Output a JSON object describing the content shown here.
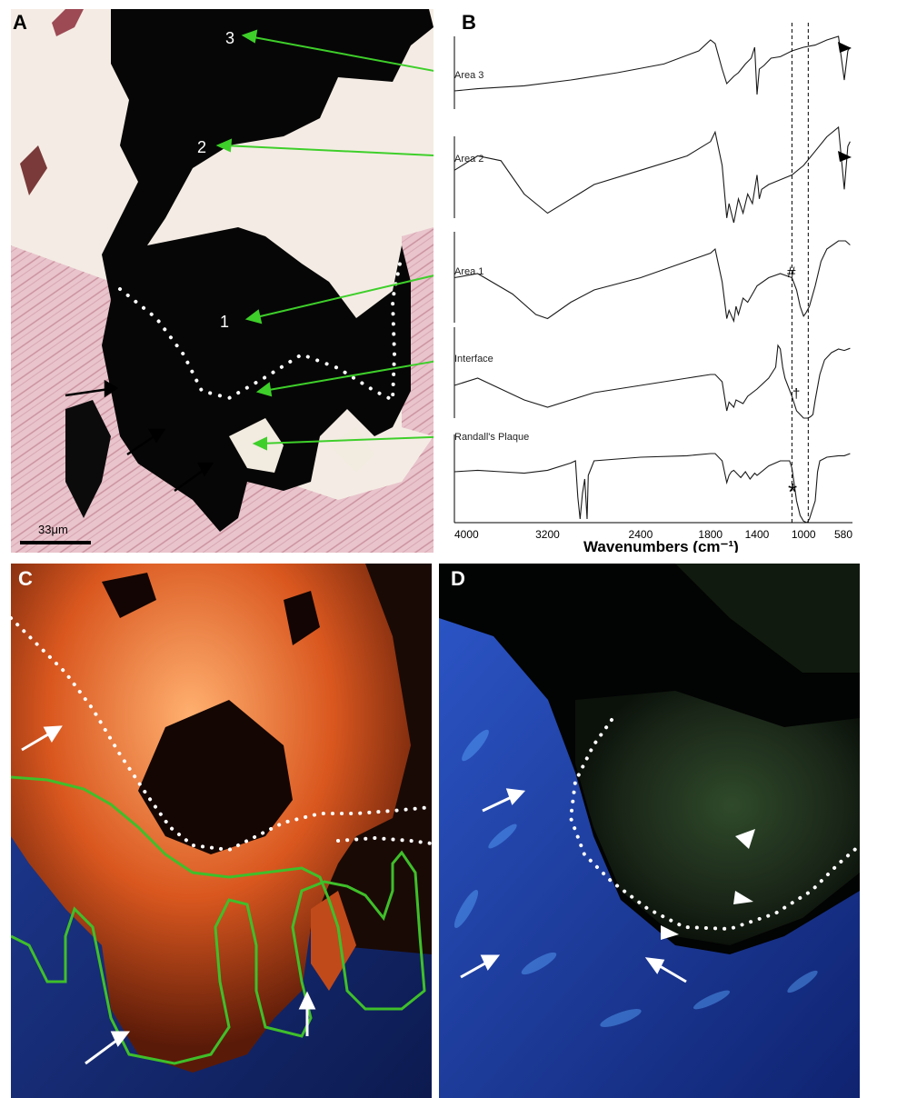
{
  "panels": {
    "a": {
      "label": "A",
      "scale_bar": "33μm",
      "area_numbers": [
        "3",
        "2",
        "1"
      ]
    },
    "b": {
      "label": "B"
    },
    "c": {
      "label": "C"
    },
    "d": {
      "label": "D"
    }
  },
  "spectra_labels": [
    "Area 3",
    "Area 2",
    "Area 1",
    "Interface",
    "Randall's Plaque"
  ],
  "peak_markers": {
    "hash": "#",
    "dagger": "†",
    "asterisk": "*"
  },
  "chart_data": {
    "type": "line",
    "xlabel": "Wavenumbers (cm⁻¹)",
    "x_ticks": [
      "4000",
      "3200",
      "2400",
      "1800",
      "1400",
      "1000",
      "580"
    ],
    "x_range": [
      4000,
      580
    ],
    "x_reversed": true,
    "reference_lines": [
      1100,
      960
    ],
    "series": [
      {
        "name": "Area 3",
        "x": [
          4000,
          3800,
          3400,
          3000,
          2600,
          2200,
          1900,
          1800,
          1760,
          1700,
          1660,
          1600,
          1560,
          1500,
          1450,
          1420,
          1400,
          1380,
          1340,
          1280,
          1200,
          1100,
          1000,
          900,
          800,
          700,
          650,
          620,
          600
        ],
        "y": [
          0.25,
          0.28,
          0.32,
          0.4,
          0.5,
          0.62,
          0.8,
          0.95,
          0.9,
          0.55,
          0.35,
          0.45,
          0.5,
          0.62,
          0.7,
          0.85,
          0.2,
          0.55,
          0.6,
          0.7,
          0.72,
          0.8,
          0.85,
          0.88,
          0.95,
          1.0,
          0.4,
          0.8,
          0.85
        ]
      },
      {
        "name": "Area 2",
        "x": [
          4000,
          3800,
          3600,
          3400,
          3200,
          3000,
          2800,
          2400,
          2000,
          1800,
          1760,
          1700,
          1660,
          1640,
          1600,
          1560,
          1520,
          1480,
          1440,
          1400,
          1380,
          1360,
          1300,
          1200,
          1100,
          1000,
          900,
          800,
          700,
          650,
          620,
          600
        ],
        "y": [
          0.55,
          0.7,
          0.65,
          0.3,
          0.1,
          0.25,
          0.4,
          0.55,
          0.7,
          0.85,
          0.95,
          0.6,
          0.05,
          0.2,
          0.0,
          0.25,
          0.1,
          0.3,
          0.2,
          0.5,
          0.25,
          0.35,
          0.4,
          0.45,
          0.5,
          0.6,
          0.75,
          0.9,
          1.0,
          0.35,
          0.8,
          0.85
        ]
      },
      {
        "name": "Area 1",
        "x": [
          4000,
          3800,
          3500,
          3300,
          3200,
          3000,
          2800,
          2400,
          2000,
          1800,
          1760,
          1700,
          1660,
          1640,
          1600,
          1580,
          1560,
          1520,
          1480,
          1440,
          1400,
          1300,
          1200,
          1100,
          1060,
          1030,
          1000,
          980,
          950,
          900,
          850,
          800,
          700,
          640,
          600
        ],
        "y": [
          0.55,
          0.6,
          0.35,
          0.1,
          0.05,
          0.25,
          0.4,
          0.55,
          0.75,
          0.85,
          0.9,
          0.5,
          0.05,
          0.15,
          0.02,
          0.2,
          0.1,
          0.3,
          0.25,
          0.35,
          0.45,
          0.55,
          0.6,
          0.55,
          0.4,
          0.2,
          0.08,
          0.12,
          0.2,
          0.45,
          0.75,
          0.9,
          1.0,
          1.0,
          0.95
        ]
      },
      {
        "name": "Interface",
        "x": [
          4000,
          3800,
          3600,
          3400,
          3200,
          3000,
          2800,
          2400,
          2000,
          1800,
          1760,
          1700,
          1660,
          1640,
          1600,
          1580,
          1520,
          1480,
          1400,
          1300,
          1240,
          1220,
          1200,
          1180,
          1160,
          1100,
          1060,
          1000,
          960,
          940,
          920,
          900,
          860,
          820,
          760,
          700,
          650,
          600
        ],
        "y": [
          0.45,
          0.55,
          0.4,
          0.25,
          0.15,
          0.25,
          0.35,
          0.45,
          0.55,
          0.6,
          0.6,
          0.5,
          0.1,
          0.22,
          0.15,
          0.25,
          0.2,
          0.3,
          0.4,
          0.55,
          0.7,
          1.0,
          0.95,
          0.7,
          0.55,
          0.3,
          0.1,
          0.0,
          0.0,
          0.02,
          0.05,
          0.25,
          0.6,
          0.8,
          0.9,
          0.95,
          0.93,
          0.96
        ]
      },
      {
        "name": "Randall's Plaque",
        "x": [
          4000,
          3800,
          3600,
          3400,
          3200,
          3000,
          2960,
          2940,
          2920,
          2900,
          2880,
          2860,
          2850,
          2800,
          2400,
          2000,
          1800,
          1760,
          1700,
          1660,
          1640,
          1620,
          1600,
          1540,
          1500,
          1460,
          1420,
          1400,
          1300,
          1200,
          1120,
          1100,
          1060,
          1030,
          1000,
          970,
          950,
          900,
          880,
          860,
          800,
          700,
          650,
          600
        ],
        "y": [
          0.7,
          0.72,
          0.7,
          0.68,
          0.72,
          0.82,
          0.85,
          0.35,
          0.05,
          0.4,
          0.6,
          0.05,
          0.65,
          0.85,
          0.9,
          0.92,
          0.95,
          0.95,
          0.85,
          0.55,
          0.65,
          0.7,
          0.72,
          0.62,
          0.7,
          0.6,
          0.68,
          0.65,
          0.78,
          0.85,
          0.85,
          0.75,
          0.3,
          0.1,
          0.02,
          0.0,
          0.05,
          0.3,
          0.7,
          0.85,
          0.9,
          0.92,
          0.92,
          0.95
        ]
      }
    ]
  }
}
